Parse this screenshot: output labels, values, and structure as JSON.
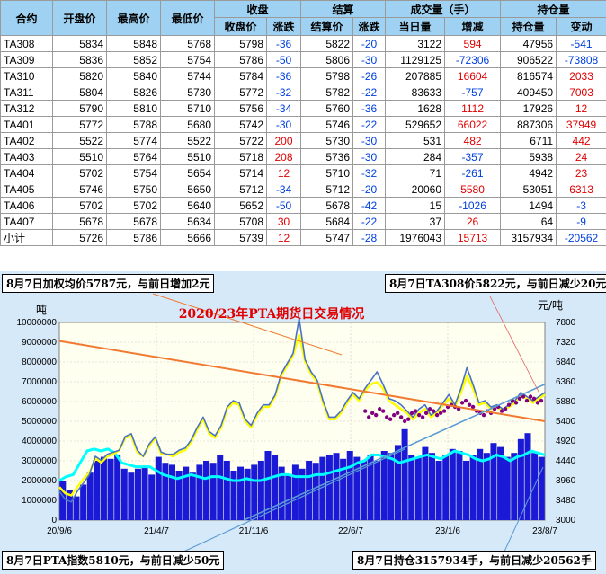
{
  "table": {
    "group_headers": {
      "contract": "合约",
      "open": "开盘价",
      "high": "最高价",
      "low": "最低价",
      "close": "收盘",
      "settle": "结算",
      "volume": "成交量（手）",
      "oi": "持仓量"
    },
    "sub_headers": {
      "close_price": "收盘价",
      "close_chg": "涨跌",
      "settle_price": "结算价",
      "settle_chg": "涨跌",
      "vol_today": "当日量",
      "vol_chg": "增减",
      "oi_qty": "持仓量",
      "oi_chg": "变动"
    },
    "rows": [
      [
        "TA308",
        "5834",
        "5848",
        "5768",
        "5798",
        "-36",
        "5822",
        "-20",
        "3122",
        "594",
        "47956",
        "-541"
      ],
      [
        "TA309",
        "5836",
        "5852",
        "5754",
        "5786",
        "-50",
        "5806",
        "-30",
        "1129125",
        "-72306",
        "906522",
        "-73808"
      ],
      [
        "TA310",
        "5820",
        "5840",
        "5744",
        "5784",
        "-36",
        "5798",
        "-26",
        "207885",
        "16604",
        "816574",
        "2033"
      ],
      [
        "TA311",
        "5804",
        "5826",
        "5730",
        "5772",
        "-32",
        "5782",
        "-22",
        "83633",
        "-757",
        "409450",
        "7003"
      ],
      [
        "TA312",
        "5790",
        "5810",
        "5710",
        "5756",
        "-34",
        "5760",
        "-36",
        "1628",
        "1112",
        "17926",
        "12"
      ],
      [
        "TA401",
        "5772",
        "5788",
        "5680",
        "5742",
        "-30",
        "5746",
        "-22",
        "529652",
        "66022",
        "887306",
        "37949"
      ],
      [
        "TA402",
        "5522",
        "5774",
        "5522",
        "5722",
        "200",
        "5730",
        "-30",
        "531",
        "482",
        "6711",
        "442"
      ],
      [
        "TA403",
        "5510",
        "5764",
        "5510",
        "5718",
        "208",
        "5736",
        "-30",
        "284",
        "-357",
        "5938",
        "24"
      ],
      [
        "TA404",
        "5702",
        "5754",
        "5654",
        "5714",
        "12",
        "5710",
        "-32",
        "71",
        "-261",
        "4942",
        "23"
      ],
      [
        "TA405",
        "5746",
        "5750",
        "5650",
        "5712",
        "-34",
        "5712",
        "-20",
        "20060",
        "5580",
        "53051",
        "6313"
      ],
      [
        "TA406",
        "5702",
        "5702",
        "5640",
        "5652",
        "-50",
        "5678",
        "-42",
        "15",
        "-1026",
        "1494",
        "-3"
      ],
      [
        "TA407",
        "5678",
        "5678",
        "5634",
        "5708",
        "30",
        "5684",
        "-22",
        "37",
        "26",
        "64",
        "-9"
      ],
      [
        "小计",
        "5726",
        "5786",
        "5666",
        "5739",
        "12",
        "5747",
        "-28",
        "1976043",
        "15713",
        "3157934",
        "-20562"
      ]
    ]
  },
  "notes": {
    "top_left": "8月7日加权均价5787元，与前日增加2元",
    "top_right": "8月7日TA308价5822元，与前日减少20元",
    "bottom_left": "8月7日PTA指数5810元，与前日减少50元",
    "bottom_right": "8月7日持仓3157934手，与前日减少20562手"
  },
  "colors": {
    "header_bg": "#9fd2f2",
    "plot_bg": "#fffff0",
    "panel_bg": "#d6e9f9",
    "positive": "#e00000",
    "negative": "#0040e0",
    "volume_bars": "#1a1ad6",
    "oi_line": "#00ffff",
    "price_line": "#4a72c4",
    "index_line": "#ffff00",
    "spot_dots": "#800080",
    "trend_orange": "#f07a30",
    "trend_blue": "#5b9bd5",
    "title": "#e00000"
  },
  "chart_data": {
    "type": "line",
    "title": "2020/23年PTA期货日交易情况",
    "left_unit": "吨",
    "right_unit": "元/吨",
    "left_ticks": [
      "0",
      "1000000",
      "2000000",
      "3000000",
      "4000000",
      "5000000",
      "6000000",
      "7000000",
      "8000000",
      "9000000",
      "10000000"
    ],
    "right_ticks": [
      "3000",
      "3480",
      "3960",
      "4440",
      "4920",
      "5400",
      "5880",
      "6360",
      "6840",
      "7320",
      "7800"
    ],
    "x_ticks": [
      "20/9/6",
      "21/4/7",
      "21/11/6",
      "22/6/7",
      "23/1/6",
      "23/8/7"
    ],
    "ylim_left": [
      0,
      10000000
    ],
    "ylim_right": [
      3000,
      7800
    ],
    "grid": true,
    "series": [
      {
        "kind": "bar",
        "axis": "left",
        "values": [
          2000000,
          1500000,
          1200000,
          1800000,
          2400000,
          3000000,
          3200000,
          3100000,
          3300000,
          2600000,
          2400000,
          2600000,
          2700000,
          2300000,
          3200000,
          2900000,
          2800000,
          2500000,
          2700000,
          2400000,
          2800000,
          3000000,
          2900000,
          3300000,
          3000000,
          2500000,
          2700000,
          2600000,
          2800000,
          3000000,
          3500000,
          3300000,
          2700000,
          2300000,
          2800000,
          2600000,
          3000000,
          2900000,
          3200000,
          3300000,
          3400000,
          3100000,
          3500000,
          3200000,
          3000000,
          3300000,
          3000000,
          3500000,
          3400000,
          3800000,
          4600000,
          3300000,
          3200000,
          3700000,
          3400000,
          3000000,
          3300000,
          3600000,
          3500000,
          3000000,
          3300000,
          3600000,
          3400000,
          3900000,
          3700000,
          3200000,
          3400000,
          4100000,
          4400000,
          3400000,
          3200000
        ]
      },
      {
        "kind": "line",
        "axis": "left",
        "values": [
          2000000,
          2200000,
          2300000,
          2900000,
          3500000,
          3600000,
          3500000,
          3600000,
          3400000,
          2900000,
          2800000,
          2700000,
          2700000,
          2700000,
          2500000,
          2300000,
          2200000,
          2100000,
          2200000,
          2300000,
          2200000,
          2100000,
          2200000,
          2200000,
          2100000,
          2000000,
          2000000,
          2100000,
          2000000,
          2000000,
          2100000,
          2200000,
          2300000,
          2300000,
          2200000,
          2200000,
          2200000,
          2300000,
          2300000,
          2400000,
          2500000,
          2600000,
          2700000,
          2900000,
          3000000,
          3300000,
          3300000,
          3200000,
          3100000,
          2900000,
          3000000,
          3100000,
          3200000,
          3300000,
          3200000,
          3100000,
          3300000,
          3500000,
          3400000,
          3300000,
          3100000,
          3000000,
          3100000,
          3300000,
          3200000,
          3000000,
          3200000,
          3300000,
          3500000,
          3400000,
          3300000
        ]
      },
      {
        "kind": "line",
        "axis": "right",
        "values": [
          3700,
          3500,
          3440,
          3700,
          3900,
          4100,
          4550,
          4450,
          4600,
          4650,
          4700,
          5030,
          5100,
          4700,
          4550,
          4850,
          5020,
          4650,
          4600,
          4600,
          4700,
          4750,
          4950,
          5250,
          5500,
          5150,
          5050,
          5300,
          5750,
          5900,
          5850,
          5450,
          5300,
          5600,
          5800,
          5800,
          6040,
          6550,
          6800,
          7050,
          7900,
          6900,
          6600,
          6400,
          5900,
          5500,
          5500,
          5650,
          5900,
          6100,
          5950,
          6200,
          6400,
          6600,
          6300,
          5950,
          5900,
          5800,
          5650,
          5500,
          5700,
          5800,
          5550,
          5650,
          5850,
          6050,
          5800,
          6200,
          6700,
          6300,
          5850,
          5900,
          5750,
          5800,
          5700,
          5800,
          5900,
          6100,
          6000,
          5900,
          6000,
          6100
        ]
      },
      {
        "kind": "line",
        "axis": "right",
        "values": [
          3800,
          3650,
          3600,
          3800,
          4000,
          4150,
          4500,
          4400,
          4550,
          4600,
          4700,
          5000,
          5050,
          4650,
          4550,
          4800,
          5000,
          4600,
          4600,
          4550,
          4650,
          4700,
          4900,
          5200,
          5450,
          5100,
          5000,
          5250,
          5700,
          5850,
          5800,
          5400,
          5250,
          5550,
          5750,
          5750,
          6000,
          6500,
          6750,
          7000,
          7500,
          6850,
          6550,
          6350,
          5850,
          5450,
          5450,
          5600,
          5850,
          6050,
          5900,
          6150,
          6300,
          6350,
          6200,
          5900,
          5800,
          5700,
          5600,
          5450,
          5600,
          5700,
          5500,
          5600,
          5800,
          5950,
          5750,
          6100,
          6500,
          6200,
          5800,
          5850,
          5700,
          5750,
          5650,
          5750,
          5850,
          6050,
          5950,
          5850,
          5950,
          6050
        ]
      },
      {
        "kind": "scatter",
        "axis": "right",
        "values": [
          5650,
          5500,
          5600,
          5550,
          5700,
          5650,
          5500,
          5450,
          5550,
          5600,
          5500,
          5400,
          5450,
          5600,
          5650,
          5550,
          5500,
          5600,
          5700,
          5650,
          5550,
          5600,
          5650,
          5750,
          5800,
          5750,
          5700,
          5850,
          5900,
          5800,
          5750,
          5650,
          5600,
          5550,
          5650,
          5600,
          5700,
          5750,
          5650,
          5700,
          5800,
          5900,
          5850,
          5950,
          6000,
          5900,
          6000,
          5950,
          5850,
          5900
        ]
      },
      {
        "kind": "trend",
        "axis": "right",
        "from": [
          0,
          7350
        ],
        "to": [
          1,
          5400
        ]
      },
      {
        "kind": "trend",
        "axis": "right",
        "from": [
          0.38,
          3000
        ],
        "to": [
          1,
          6300
        ]
      }
    ]
  }
}
